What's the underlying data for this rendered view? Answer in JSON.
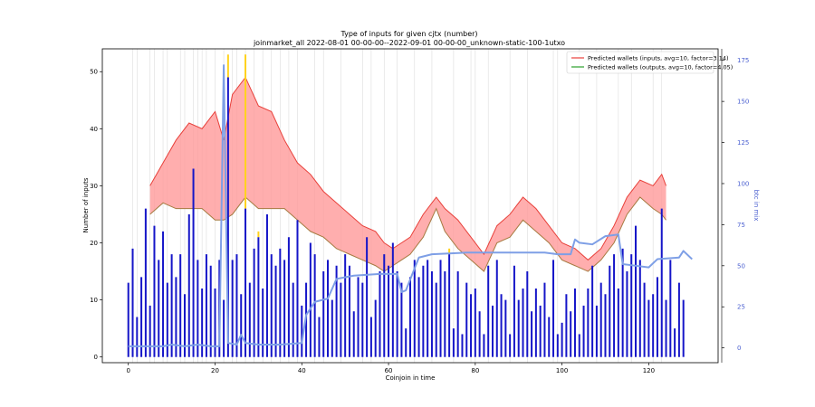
{
  "chart_data": {
    "type": "bar",
    "title": "Type of inputs for given cjtx (number)",
    "subtitle": "joinmarket_all 2022-08-01 00-00-00--2022-09-01 00-00-00_unknown-static-100-1utxo",
    "xlabel": "Coinjoin in time",
    "ylabel": "Number of inputs",
    "y2label": "btc in mix",
    "xlim": [
      -6,
      136
    ],
    "ylim": [
      -1,
      54
    ],
    "y2lim": [
      -9,
      182
    ],
    "xticks": [
      0,
      20,
      40,
      60,
      80,
      100,
      120
    ],
    "yticks": [
      0,
      10,
      20,
      30,
      40,
      50
    ],
    "y2ticks": [
      0,
      25,
      50,
      75,
      100,
      125,
      150,
      175
    ],
    "grid": "vertical lines at selected coinjoins",
    "legend_position": "top-right",
    "legend": [
      {
        "label": "Predicted wallets (inputs, avg=10, factor=3.14)",
        "color": "#e8403a"
      },
      {
        "label": "Predicted wallets (outputs, avg=10, factor=4.05)",
        "color": "#2ca02c"
      }
    ],
    "colors": {
      "bars": "#1515c8",
      "stack": "#ffd21e",
      "btc_line": "#7e9fe6",
      "band_fill": "#ff9a9a",
      "band_top": "#e8403a",
      "band_bottom": "#a67a40"
    },
    "bars": [
      13,
      19,
      7,
      14,
      26,
      9,
      23,
      17,
      22,
      13,
      18,
      14,
      18,
      11,
      25,
      33,
      17,
      12,
      18,
      16,
      12,
      17,
      10,
      49,
      17,
      18,
      11,
      26,
      13,
      19,
      21,
      12,
      25,
      18,
      16,
      19,
      17,
      21,
      13,
      24,
      9,
      13,
      20,
      18,
      7,
      15,
      17,
      10,
      16,
      13,
      18,
      16,
      8,
      14,
      13,
      21,
      7,
      10,
      15,
      18,
      16,
      20,
      15,
      13,
      5,
      14,
      17,
      14,
      16,
      17,
      15,
      13,
      17,
      15,
      18,
      5,
      15,
      4,
      13,
      11,
      12,
      8,
      4,
      16,
      9,
      17,
      11,
      10,
      4,
      16,
      10,
      12,
      15,
      8,
      12,
      9,
      13,
      7,
      17,
      4,
      6,
      11,
      8,
      12,
      4,
      9,
      12,
      16,
      9,
      13,
      11,
      16,
      18,
      12,
      19,
      15,
      18,
      23,
      17,
      13,
      10,
      11,
      14,
      26,
      10,
      17,
      5,
      13,
      10
    ],
    "stack_tops": [
      13,
      19,
      7,
      14,
      26,
      9,
      23,
      17,
      22,
      13,
      18,
      14,
      18,
      11,
      25,
      33,
      17,
      12,
      18,
      16,
      12,
      17,
      10,
      53,
      17,
      18,
      11,
      53,
      13,
      19,
      22,
      12,
      25,
      18,
      16,
      19,
      17,
      21,
      13,
      24,
      9,
      13,
      20,
      18,
      7,
      15,
      17,
      10,
      16,
      13,
      18,
      16,
      8,
      14,
      13,
      21,
      7,
      10,
      15,
      18,
      16,
      20,
      15,
      13,
      5,
      14,
      17,
      14,
      16,
      17,
      15,
      13,
      17,
      15,
      19,
      5,
      15,
      4,
      13,
      11,
      12,
      8,
      4,
      16,
      9,
      17,
      11,
      10,
      4,
      16,
      10,
      12,
      15,
      8,
      12,
      9,
      13,
      7,
      17,
      4,
      6,
      11,
      8,
      12,
      4,
      9,
      12,
      16,
      9,
      13,
      11,
      16,
      18,
      12,
      19,
      15,
      18,
      23,
      17,
      13,
      10,
      11,
      14,
      26,
      10,
      17,
      5,
      13,
      10
    ],
    "btc_in_mix": [
      {
        "x": 0,
        "y": 1
      },
      {
        "x": 5,
        "y": 1
      },
      {
        "x": 8,
        "y": 1
      },
      {
        "x": 10,
        "y": 2
      },
      {
        "x": 13,
        "y": 1
      },
      {
        "x": 16,
        "y": 2
      },
      {
        "x": 19,
        "y": 1
      },
      {
        "x": 21,
        "y": 1
      },
      {
        "x": 22,
        "y": 172
      },
      {
        "x": 23,
        "y": 3
      },
      {
        "x": 25,
        "y": 2
      },
      {
        "x": 26,
        "y": 8
      },
      {
        "x": 27,
        "y": 3
      },
      {
        "x": 30,
        "y": 2
      },
      {
        "x": 35,
        "y": 2
      },
      {
        "x": 40,
        "y": 3
      },
      {
        "x": 41,
        "y": 20
      },
      {
        "x": 43,
        "y": 28
      },
      {
        "x": 46,
        "y": 30
      },
      {
        "x": 48,
        "y": 42
      },
      {
        "x": 52,
        "y": 44
      },
      {
        "x": 58,
        "y": 45
      },
      {
        "x": 62,
        "y": 45
      },
      {
        "x": 63,
        "y": 34
      },
      {
        "x": 64,
        "y": 35
      },
      {
        "x": 67,
        "y": 55
      },
      {
        "x": 70,
        "y": 57
      },
      {
        "x": 78,
        "y": 58
      },
      {
        "x": 85,
        "y": 58
      },
      {
        "x": 96,
        "y": 58
      },
      {
        "x": 99,
        "y": 57
      },
      {
        "x": 102,
        "y": 57
      },
      {
        "x": 103,
        "y": 66
      },
      {
        "x": 104,
        "y": 64
      },
      {
        "x": 107,
        "y": 63
      },
      {
        "x": 110,
        "y": 68
      },
      {
        "x": 113,
        "y": 69
      },
      {
        "x": 114,
        "y": 51
      },
      {
        "x": 117,
        "y": 50
      },
      {
        "x": 120,
        "y": 49
      },
      {
        "x": 122,
        "y": 54
      },
      {
        "x": 127,
        "y": 55
      },
      {
        "x": 128,
        "y": 59
      },
      {
        "x": 130,
        "y": 54
      }
    ],
    "wallet_band": [
      {
        "x": 5,
        "lo": 25,
        "hi": 30
      },
      {
        "x": 8,
        "lo": 27,
        "hi": 34
      },
      {
        "x": 11,
        "lo": 26,
        "hi": 38
      },
      {
        "x": 14,
        "lo": 26,
        "hi": 41
      },
      {
        "x": 17,
        "lo": 26,
        "hi": 40
      },
      {
        "x": 20,
        "lo": 24,
        "hi": 43
      },
      {
        "x": 22,
        "lo": 24,
        "hi": 38
      },
      {
        "x": 24,
        "lo": 25,
        "hi": 46
      },
      {
        "x": 27,
        "lo": 28,
        "hi": 49
      },
      {
        "x": 30,
        "lo": 26,
        "hi": 44
      },
      {
        "x": 33,
        "lo": 26,
        "hi": 43
      },
      {
        "x": 36,
        "lo": 26,
        "hi": 38
      },
      {
        "x": 39,
        "lo": 24,
        "hi": 34
      },
      {
        "x": 42,
        "lo": 22,
        "hi": 32
      },
      {
        "x": 45,
        "lo": 21,
        "hi": 29
      },
      {
        "x": 48,
        "lo": 19,
        "hi": 27
      },
      {
        "x": 51,
        "lo": 18,
        "hi": 25
      },
      {
        "x": 54,
        "lo": 17,
        "hi": 23
      },
      {
        "x": 57,
        "lo": 16,
        "hi": 22
      },
      {
        "x": 59,
        "lo": 15,
        "hi": 20
      },
      {
        "x": 61,
        "lo": 16,
        "hi": 19
      },
      {
        "x": 63,
        "lo": 17,
        "hi": 20
      },
      {
        "x": 65,
        "lo": 18,
        "hi": 21
      },
      {
        "x": 68,
        "lo": 21,
        "hi": 25
      },
      {
        "x": 71,
        "lo": 26,
        "hi": 28
      },
      {
        "x": 73,
        "lo": 22,
        "hi": 26
      },
      {
        "x": 76,
        "lo": 19,
        "hi": 24
      },
      {
        "x": 79,
        "lo": 17,
        "hi": 21
      },
      {
        "x": 82,
        "lo": 15,
        "hi": 18
      },
      {
        "x": 85,
        "lo": 20,
        "hi": 23
      },
      {
        "x": 88,
        "lo": 21,
        "hi": 25
      },
      {
        "x": 91,
        "lo": 24,
        "hi": 28
      },
      {
        "x": 94,
        "lo": 22,
        "hi": 26
      },
      {
        "x": 97,
        "lo": 20,
        "hi": 23
      },
      {
        "x": 100,
        "lo": 17,
        "hi": 20
      },
      {
        "x": 103,
        "lo": 16,
        "hi": 19
      },
      {
        "x": 106,
        "lo": 15,
        "hi": 17
      },
      {
        "x": 109,
        "lo": 17,
        "hi": 19
      },
      {
        "x": 112,
        "lo": 20,
        "hi": 23
      },
      {
        "x": 115,
        "lo": 25,
        "hi": 28
      },
      {
        "x": 118,
        "lo": 28,
        "hi": 31
      },
      {
        "x": 121,
        "lo": 26,
        "hi": 30
      },
      {
        "x": 123,
        "lo": 25,
        "hi": 32
      },
      {
        "x": 124,
        "lo": 24,
        "hi": 30
      }
    ],
    "grid_x": [
      1,
      2,
      5,
      6,
      8,
      9,
      12,
      13,
      15,
      16,
      17,
      18,
      20,
      22,
      24,
      25,
      27,
      29,
      31,
      33,
      35,
      37,
      39,
      43,
      45,
      49,
      54,
      56,
      59,
      62,
      66,
      70,
      75,
      79,
      80,
      83,
      88,
      92,
      98,
      99,
      104,
      108,
      113,
      116,
      121,
      123
    ]
  }
}
